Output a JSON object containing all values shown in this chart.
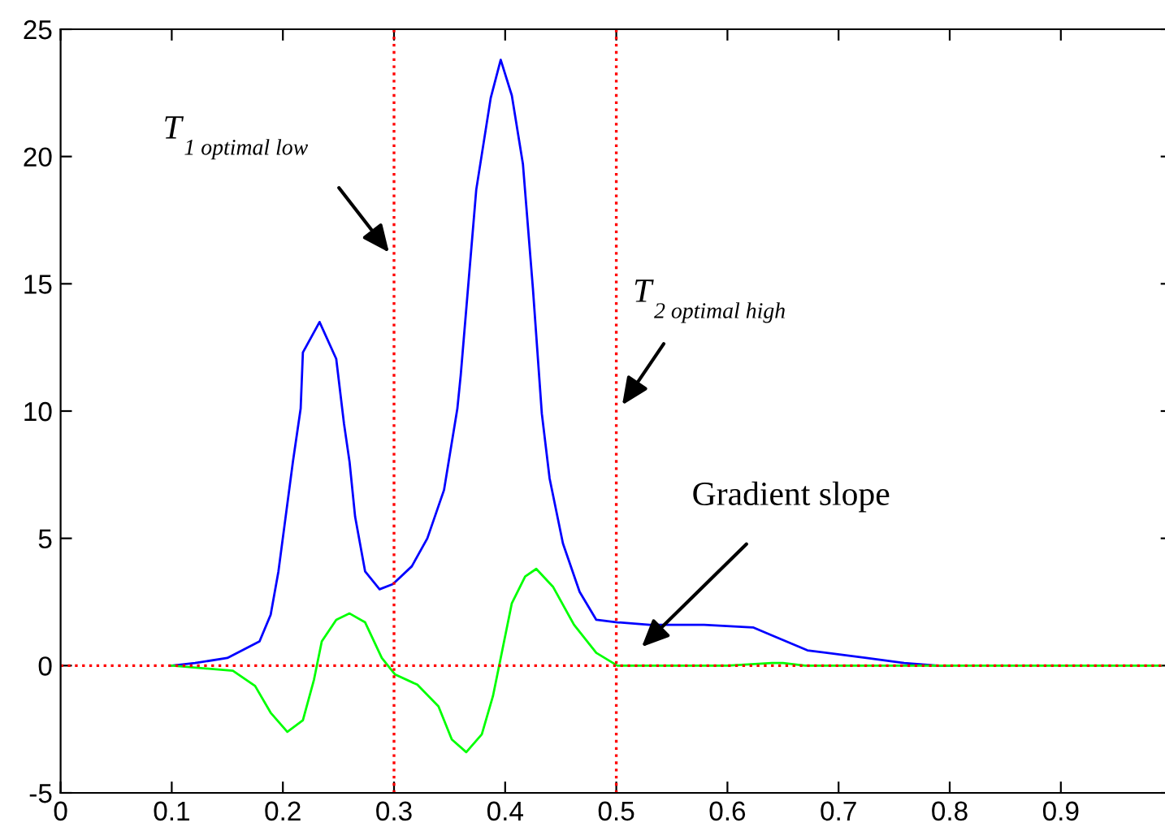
{
  "chart_data": {
    "type": "line",
    "xlim": [
      0,
      1
    ],
    "ylim": [
      -5,
      25
    ],
    "xticks": [
      0,
      0.1,
      0.2,
      0.3,
      0.4,
      0.5,
      0.6,
      0.7,
      0.8,
      0.9
    ],
    "yticks": [
      -5,
      0,
      5,
      10,
      15,
      20,
      25
    ],
    "grid": false,
    "legend": false,
    "marker": "none",
    "line_style": "solid",
    "series": [
      {
        "color": "#0000ff",
        "x": [
          0.1,
          0.121,
          0.15,
          0.179,
          0.189,
          0.196,
          0.209,
          0.216,
          0.218,
          0.233,
          0.248,
          0.255,
          0.26,
          0.265,
          0.274,
          0.287,
          0.299,
          0.316,
          0.33,
          0.345,
          0.357,
          0.36,
          0.374,
          0.387,
          0.396,
          0.406,
          0.416,
          0.425,
          0.433,
          0.44,
          0.452,
          0.467,
          0.482,
          0.501,
          0.53,
          0.579,
          0.623,
          0.642,
          0.672,
          0.725,
          0.759,
          0.789,
          0.8
        ],
        "values": [
          0,
          0.1,
          0.3,
          0.95,
          2.0,
          3.7,
          8.0,
          10.1,
          12.3,
          13.5,
          12.05,
          9.5,
          8.0,
          5.85,
          3.7,
          3.0,
          3.2,
          3.9,
          5.0,
          6.9,
          10.1,
          11.4,
          18.7,
          22.3,
          23.8,
          22.4,
          19.7,
          14.8,
          9.9,
          7.35,
          4.8,
          2.9,
          1.8,
          1.7,
          1.6,
          1.6,
          1.5,
          1.15,
          0.6,
          0.3,
          0.1,
          0,
          0
        ]
      },
      {
        "color": "#00ff00",
        "x": [
          0.1,
          0.155,
          0.175,
          0.189,
          0.204,
          0.218,
          0.228,
          0.235,
          0.248,
          0.26,
          0.274,
          0.289,
          0.301,
          0.321,
          0.34,
          0.352,
          0.365,
          0.379,
          0.389,
          0.396,
          0.406,
          0.418,
          0.428,
          0.443,
          0.462,
          0.482,
          0.501,
          0.6,
          0.64,
          0.65,
          0.67,
          0.8,
          0.99
        ],
        "values": [
          0,
          -0.2,
          -0.8,
          -1.85,
          -2.6,
          -2.15,
          -0.55,
          0.95,
          1.8,
          2.05,
          1.7,
          0.3,
          -0.35,
          -0.75,
          -1.6,
          -2.9,
          -3.4,
          -2.7,
          -1.2,
          0.3,
          2.45,
          3.5,
          3.8,
          3.1,
          1.6,
          0.5,
          0,
          0,
          0.1,
          0.1,
          0,
          0,
          0
        ]
      }
    ],
    "ref_lines": [
      {
        "axis": "x",
        "value": 0.3,
        "color": "#ff0000",
        "line_style": "dotted"
      },
      {
        "axis": "x",
        "value": 0.5,
        "color": "#ff0000",
        "line_style": "dotted"
      },
      {
        "axis": "y",
        "value": 0,
        "color": "#ff0000",
        "line_style": "dotted"
      }
    ],
    "annotations": [
      "T$_{1 optimal low}$",
      "T$_{2 optimal high}$",
      "Gradient slope"
    ]
  }
}
